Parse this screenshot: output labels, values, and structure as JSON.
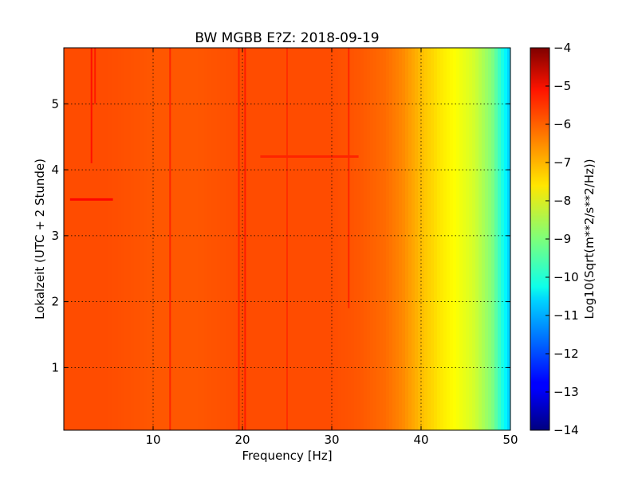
{
  "chart_data": {
    "type": "heatmap",
    "title": "BW MGBB E?Z: 2018-09-19",
    "xlabel": "Frequency [Hz]",
    "ylabel": "Lokalzeit (UTC + 2 Stunde)",
    "xlim": [
      0,
      50
    ],
    "ylim": [
      5.85,
      0.05
    ],
    "x_ticks": [
      10,
      20,
      30,
      40,
      50
    ],
    "x_tick_labels": [
      "10",
      "20",
      "30",
      "40",
      "50"
    ],
    "y_ticks": [
      1,
      2,
      3,
      4,
      5
    ],
    "y_tick_labels": [
      "1",
      "2",
      "3",
      "4",
      "5"
    ],
    "grid": true,
    "colormap": "jet",
    "colorbar": {
      "label": "Log10(Sqrt(m**2/s**2/Hz))",
      "range": [
        -14,
        -4
      ],
      "ticks": [
        -4,
        -5,
        -6,
        -7,
        -8,
        -9,
        -10,
        -11,
        -12,
        -13,
        -14
      ],
      "tick_labels": [
        "−4",
        "−5",
        "−6",
        "−7",
        "−8",
        "−9",
        "−10",
        "−11",
        "−12",
        "−13",
        "−14"
      ]
    },
    "spectrum_profile": {
      "frequency_hz": [
        0,
        5,
        10,
        15,
        20,
        25,
        30,
        33,
        36,
        38,
        40,
        42,
        44,
        46,
        48,
        50
      ],
      "level": [
        -6.0,
        -6.0,
        -6.1,
        -6.1,
        -6.0,
        -6.0,
        -6.0,
        -6.1,
        -6.3,
        -6.6,
        -7.1,
        -7.5,
        -7.8,
        -8.2,
        -9.0,
        -10.8
      ]
    },
    "features": [
      {
        "type": "vertical-line",
        "frequency_hz": 11.9,
        "level": -5.6
      },
      {
        "type": "vertical-line",
        "frequency_hz": 19.6,
        "level": -5.6
      },
      {
        "type": "vertical-line",
        "frequency_hz": 20.3,
        "level": -5.5
      },
      {
        "type": "vertical-line",
        "frequency_hz": 25.0,
        "level": -5.7
      },
      {
        "type": "vertical-line",
        "frequency_hz": 31.9,
        "level": -5.6,
        "t_start": 1.9,
        "t_end": 5.85
      },
      {
        "type": "vertical-line",
        "frequency_hz": 3.1,
        "level": -5.4,
        "t_start": 4.1,
        "t_end": 5.85
      },
      {
        "type": "vertical-line",
        "frequency_hz": 3.5,
        "level": -5.5,
        "t_start": 5.0,
        "t_end": 5.85
      },
      {
        "type": "horizontal-band",
        "time": 3.55,
        "f_start": 0.7,
        "f_end": 5.5,
        "level": -5.3
      },
      {
        "type": "horizontal-band",
        "time": 4.2,
        "f_start": 22.0,
        "f_end": 33.0,
        "level": -5.6
      }
    ]
  }
}
